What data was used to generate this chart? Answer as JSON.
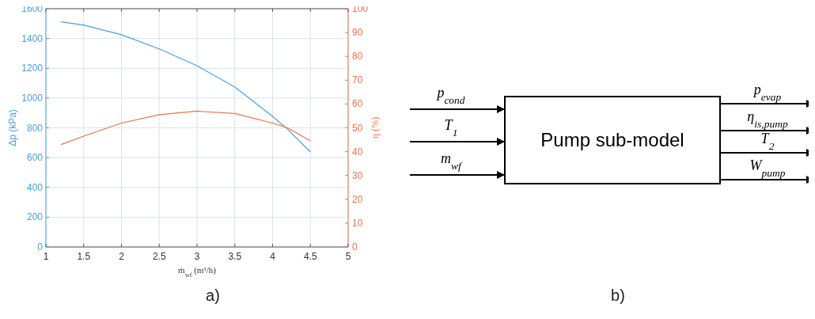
{
  "chart_data": [
    {
      "type": "line",
      "xlabel": "ṁ$_{wf}$ (m³/h)",
      "ylabel": "Δp (kPa)",
      "y2label": "η (%)",
      "x": [
        1.2,
        1.5,
        2,
        2.5,
        3,
        3.5,
        4,
        4.2,
        4.5
      ],
      "series": [
        {
          "color": "#4a9fd8",
          "values": [
            1512,
            1490,
            1425,
            1330,
            1217,
            1074,
            877,
            790,
            638
          ]
        },
        {
          "color": "#e8734a",
          "axis": "y2",
          "values": [
            43,
            46.5,
            52,
            55.5,
            57,
            56,
            52,
            50,
            44.5
          ]
        }
      ],
      "xlim": [
        1,
        5
      ],
      "xticks": [
        1,
        1.5,
        2,
        2.5,
        3,
        3.5,
        4,
        4.5,
        5
      ],
      "ylim": [
        0,
        1600
      ],
      "yticks": [
        0,
        200,
        400,
        600,
        800,
        1000,
        1200,
        1400,
        1600
      ],
      "y2lim": [
        0,
        100
      ],
      "y2ticks": [
        0,
        10,
        20,
        30,
        40,
        50,
        60,
        70,
        80,
        90,
        100
      ],
      "grid": true,
      "line_style": "solid",
      "marker": "none",
      "annotations": [
        "a)"
      ]
    },
    {
      "type": "other",
      "title": "Pump sub-model",
      "annotations": [
        "p$_{cond}$",
        "T$_{1}$",
        "m$_{wf}$",
        "p$_{evap}$",
        "η$_{is,pump}$",
        "T$_{2}$",
        "W$_{pump}$",
        "b)"
      ]
    }
  ]
}
